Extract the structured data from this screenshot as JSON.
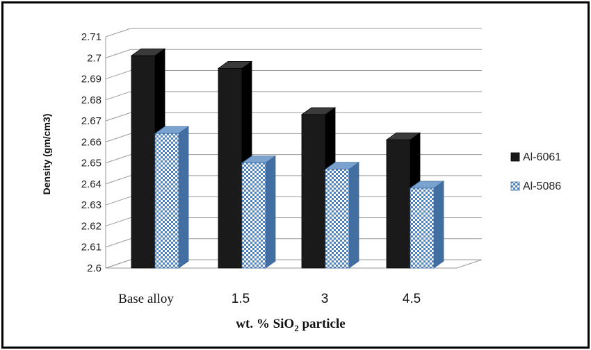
{
  "chart_data": {
    "type": "bar",
    "categories": [
      "Base alloy",
      "1.5",
      "3",
      "4.5"
    ],
    "series": [
      {
        "name": "Al-6061",
        "values": [
          2.701,
          2.695,
          2.673,
          2.661
        ],
        "color": "#1a1a1a",
        "pattern": "solid"
      },
      {
        "name": "Al-5086",
        "values": [
          2.664,
          2.65,
          2.647,
          2.638
        ],
        "color": "#4f81bd",
        "pattern": "checker"
      }
    ],
    "ylim": [
      2.6,
      2.71
    ],
    "yticks": [
      "2.6",
      "2.61",
      "2.62",
      "2.63",
      "2.64",
      "2.65",
      "2.66",
      "2.67",
      "2.68",
      "2.69",
      "2.7",
      "2.71"
    ],
    "ylabel": "Density (gm/cm3)",
    "xlabel": {
      "prefix": "wt. % SiO",
      "subscript": "2",
      "suffix": " particle"
    },
    "grid": true,
    "legend_position": "right",
    "style": "3d-clustered-columns"
  }
}
